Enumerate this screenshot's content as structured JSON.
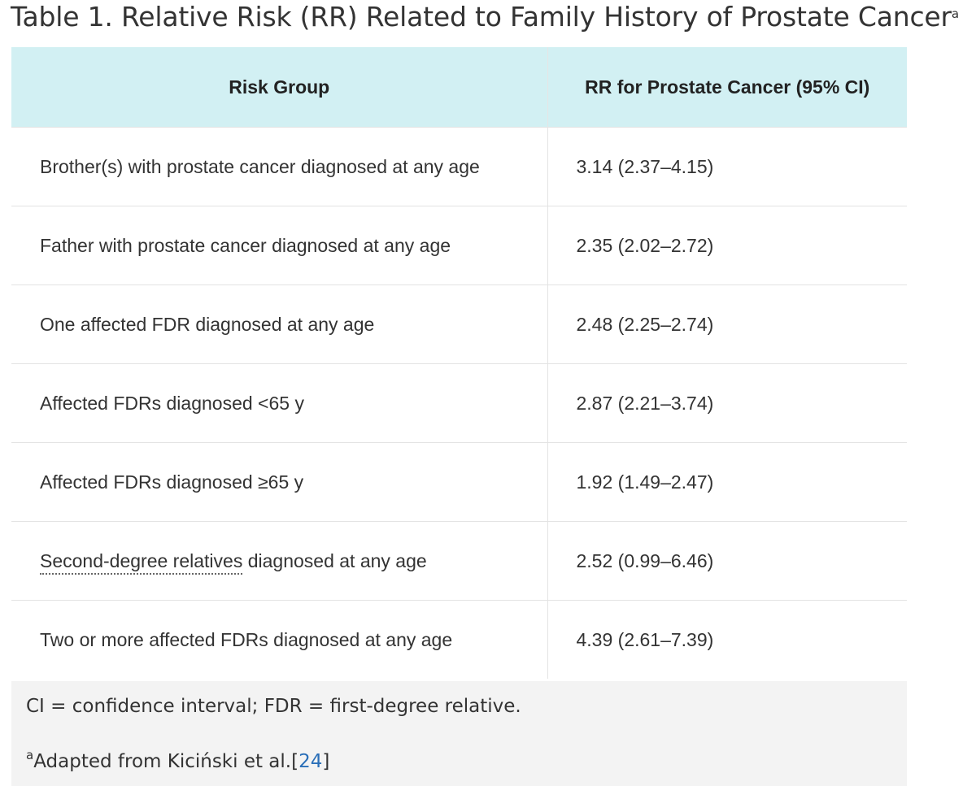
{
  "title": "Table 1. Relative Risk (RR) Related to Family History of Prostate Cancer",
  "title_superscript": "a",
  "table": {
    "headers": [
      "Risk Group",
      "RR for Prostate Cancer (95% CI)"
    ],
    "rows": [
      {
        "group": "Brother(s) with prostate cancer diagnosed at any age",
        "rr": "3.14 (2.37–4.15)"
      },
      {
        "group": "Father with prostate cancer diagnosed at any age",
        "rr": "2.35 (2.02–2.72)"
      },
      {
        "group": "One affected FDR diagnosed at any age",
        "rr": "2.48 (2.25–2.74)"
      },
      {
        "group": "Affected FDRs diagnosed <65 y",
        "rr": "2.87 (2.21–3.74)"
      },
      {
        "group": "Affected FDRs diagnosed ≥65 y",
        "rr": "1.92 (1.49–2.47)"
      },
      {
        "group_term": "Second-degree relatives",
        "group_rest": " diagnosed at any age",
        "rr": "2.52 (0.99–6.46)"
      },
      {
        "group": "Two or more affected FDRs diagnosed at any age",
        "rr": "4.39 (2.61–7.39)"
      }
    ]
  },
  "footnotes": {
    "abbreviations": "CI = confidence interval; FDR = first-degree relative.",
    "source_marker": "a",
    "source_text": "Adapted from Kiciński et al.",
    "ref_open": "[",
    "ref_number": "24",
    "ref_close": "]"
  },
  "colors": {
    "header_bg": "#d2f0f3",
    "footer_bg": "#f3f3f3",
    "link": "#2a6fb8"
  }
}
